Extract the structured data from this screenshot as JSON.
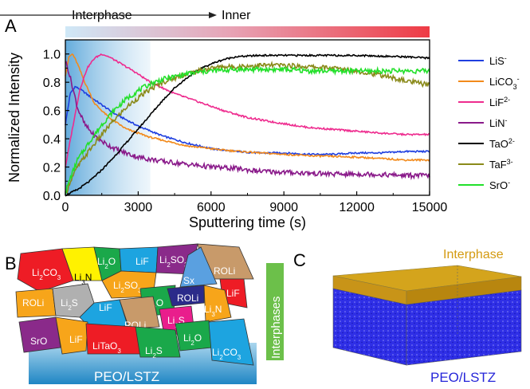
{
  "panels": {
    "a": "A",
    "b": "B",
    "c": "C"
  },
  "header": {
    "left": "Interphase",
    "right": "Inner"
  },
  "chart_data": {
    "type": "line",
    "xlabel": "Sputtering time (s)",
    "ylabel": "Normalized Intensity",
    "xlim": [
      0,
      15000
    ],
    "ylim": [
      0,
      1.1
    ],
    "xticks": [
      0,
      3000,
      6000,
      9000,
      12000,
      15000
    ],
    "yticks": [
      0.0,
      0.2,
      0.4,
      0.6,
      0.8,
      1.0
    ],
    "xtick_labels": [
      "0",
      "3000",
      "6000",
      "9000",
      "12000",
      "15000"
    ],
    "ytick_labels": [
      "0.0",
      "0.2",
      "0.4",
      "0.6",
      "0.8",
      "1.0"
    ],
    "legend_position": "right",
    "grid": false,
    "series": [
      {
        "name": "LiS",
        "sup": "-",
        "color": "#1f3fe0",
        "x": [
          0,
          200,
          400,
          700,
          1000,
          1500,
          2000,
          3000,
          4000,
          5000,
          6000,
          7000,
          8000,
          9000,
          10000,
          11000,
          12000,
          13000,
          14000,
          15000
        ],
        "y": [
          0.5,
          0.72,
          0.77,
          0.74,
          0.7,
          0.64,
          0.58,
          0.49,
          0.42,
          0.37,
          0.33,
          0.31,
          0.3,
          0.3,
          0.29,
          0.29,
          0.3,
          0.3,
          0.31,
          0.31
        ]
      },
      {
        "name": "LiCO",
        "sub": "3",
        "sup": "-",
        "color": "#f28a1b",
        "x": [
          0,
          150,
          300,
          500,
          800,
          1200,
          1800,
          2500,
          3500,
          5000,
          6500,
          8000,
          10000,
          12000,
          14000,
          15000
        ],
        "y": [
          0.85,
          0.98,
          1.0,
          0.93,
          0.8,
          0.65,
          0.55,
          0.47,
          0.41,
          0.35,
          0.32,
          0.3,
          0.28,
          0.27,
          0.25,
          0.25
        ]
      },
      {
        "name": "LiF",
        "sup": "2-",
        "color": "#ee2b8e",
        "x": [
          0,
          300,
          600,
          900,
          1200,
          1500,
          1800,
          2200,
          2800,
          3500,
          4500,
          5500,
          6500,
          7500,
          8500,
          10000,
          11500,
          13000,
          14000,
          15000
        ],
        "y": [
          0.2,
          0.48,
          0.75,
          0.9,
          0.97,
          1.0,
          0.98,
          0.94,
          0.88,
          0.8,
          0.72,
          0.66,
          0.6,
          0.55,
          0.52,
          0.48,
          0.46,
          0.44,
          0.43,
          0.43
        ]
      },
      {
        "name": "LiN",
        "sup": "-",
        "color": "#8a1a8a",
        "x": [
          0,
          100,
          250,
          500,
          800,
          1200,
          1700,
          2300,
          3000,
          4000,
          5000,
          6000,
          7000,
          8000,
          9500,
          11000,
          12500,
          14000,
          15000
        ],
        "y": [
          0.95,
          0.9,
          0.8,
          0.62,
          0.5,
          0.42,
          0.36,
          0.31,
          0.27,
          0.24,
          0.22,
          0.2,
          0.19,
          0.17,
          0.16,
          0.15,
          0.15,
          0.14,
          0.14
        ]
      },
      {
        "name": "TaO",
        "sup": "2-",
        "color": "#000000",
        "x": [
          0,
          500,
          1000,
          1500,
          2000,
          2500,
          3000,
          3500,
          4000,
          4500,
          5000,
          5500,
          6000,
          6500,
          7000,
          8000,
          9000,
          10000,
          12000,
          14000,
          15000
        ],
        "y": [
          0.0,
          0.04,
          0.1,
          0.18,
          0.27,
          0.37,
          0.47,
          0.57,
          0.67,
          0.76,
          0.83,
          0.89,
          0.93,
          0.96,
          0.98,
          0.99,
          0.99,
          0.99,
          0.99,
          0.98,
          0.97
        ]
      },
      {
        "name": "TaF",
        "sup": "3-",
        "color": "#8a8a1a",
        "x": [
          0,
          200,
          500,
          1000,
          1500,
          2000,
          2500,
          3000,
          3500,
          4000,
          4500,
          5000,
          5500,
          6000,
          6500,
          7000,
          8000,
          9000,
          10000,
          11000,
          12000,
          13000,
          14000,
          15000
        ],
        "y": [
          0.0,
          0.1,
          0.2,
          0.32,
          0.43,
          0.53,
          0.62,
          0.69,
          0.75,
          0.8,
          0.83,
          0.86,
          0.88,
          0.9,
          0.91,
          0.91,
          0.92,
          0.92,
          0.91,
          0.9,
          0.88,
          0.85,
          0.81,
          0.78
        ]
      },
      {
        "name": "SrO",
        "sup": "-",
        "color": "#22e02a",
        "x": [
          0,
          200,
          500,
          1000,
          1500,
          2000,
          2500,
          3000,
          3500,
          4000,
          4500,
          5000,
          5500,
          6000,
          7000,
          8000,
          9000,
          10000,
          11000,
          12000,
          13000,
          14000,
          15000
        ],
        "y": [
          0.02,
          0.12,
          0.25,
          0.38,
          0.5,
          0.6,
          0.68,
          0.74,
          0.79,
          0.82,
          0.84,
          0.86,
          0.87,
          0.88,
          0.89,
          0.89,
          0.89,
          0.88,
          0.88,
          0.88,
          0.88,
          0.88,
          0.88
        ]
      }
    ]
  },
  "crystals": [
    {
      "label": "Li",
      "sub": "2",
      "rest": "CO",
      "sub2": "3",
      "fill": "#ee1c25"
    },
    {
      "label": "Li",
      "sub": "3",
      "rest": "N",
      "sub2": "",
      "fill": "#fff200"
    },
    {
      "label": "Li",
      "sub": "2",
      "rest": "O",
      "sub2": "",
      "fill": "#1aa84a"
    },
    {
      "label": "LiF",
      "sub": "",
      "rest": "",
      "sub2": "",
      "fill": "#1da4e0"
    },
    {
      "label": "Li",
      "sub": "2",
      "rest": "SO",
      "sub2": "3",
      "fill": "#8a2a8a"
    },
    {
      "label": "ROLi",
      "sub": "",
      "rest": "",
      "sub2": "",
      "fill": "#c89a6a"
    },
    {
      "label": "Sx",
      "sub": "",
      "rest": "",
      "sub2": "",
      "fill": "#5aa0e0"
    },
    {
      "label": "Li",
      "sub": "2",
      "rest": "SO",
      "sub2": "3",
      "fill": "#f7a51a"
    },
    {
      "label": "ROLi",
      "sub": "",
      "rest": "",
      "sub2": "",
      "fill": "#f7a51a"
    },
    {
      "label": "Li",
      "sub": "2",
      "rest": "S",
      "sub2": "",
      "fill": "#b0b0b0"
    },
    {
      "label": "LiF",
      "sub": "",
      "rest": "",
      "sub2": "",
      "fill": "#1da4e0"
    },
    {
      "label": "Li",
      "sub": "2",
      "rest": "O",
      "sub2": "",
      "fill": "#1aa84a"
    },
    {
      "label": "ROLi",
      "sub": "",
      "rest": "",
      "sub2": "",
      "fill": "#2b2b8a"
    },
    {
      "label": "LiF",
      "sub": "",
      "rest": "",
      "sub2": "",
      "fill": "#ee1c25"
    },
    {
      "label": "ROLi",
      "sub": "",
      "rest": "",
      "sub2": "",
      "fill": "#c89a6a"
    },
    {
      "label": "Li",
      "sub": "3",
      "rest": "N",
      "sub2": "",
      "fill": "#f7a51a"
    },
    {
      "label": "Li",
      "sub": "2",
      "rest": "S",
      "sub2": "",
      "fill": "#e91e8c"
    },
    {
      "label": "SrO",
      "sub": "",
      "rest": "",
      "sub2": "",
      "fill": "#8a2a8a"
    },
    {
      "label": "LiF",
      "sub": "",
      "rest": "",
      "sub2": "",
      "fill": "#f7a51a"
    },
    {
      "label": "LiTaO",
      "sub": "3",
      "rest": "",
      "sub2": "",
      "fill": "#ee1c25"
    },
    {
      "label": "Li",
      "sub": "2",
      "rest": "S",
      "sub2": "",
      "fill": "#1aa84a"
    },
    {
      "label": "Li",
      "sub": "2",
      "rest": "O",
      "sub2": "",
      "fill": "#1aa84a"
    },
    {
      "label": "Li",
      "sub": "2",
      "rest": "CO",
      "sub2": "3",
      "fill": "#1da4e0"
    }
  ],
  "panel_b": {
    "substrate": "PEO/LSTZ",
    "side_label": "Interphases"
  },
  "panel_c": {
    "top_label": "Interphase",
    "bottom_label": "PEO/LSTZ"
  },
  "colors": {
    "interphase": "#d4a41c",
    "bulk": "#2626d9",
    "side_bar": "#6cc04a",
    "substrate_top": "#aad6ee",
    "substrate_bottom": "#1f86c4"
  }
}
